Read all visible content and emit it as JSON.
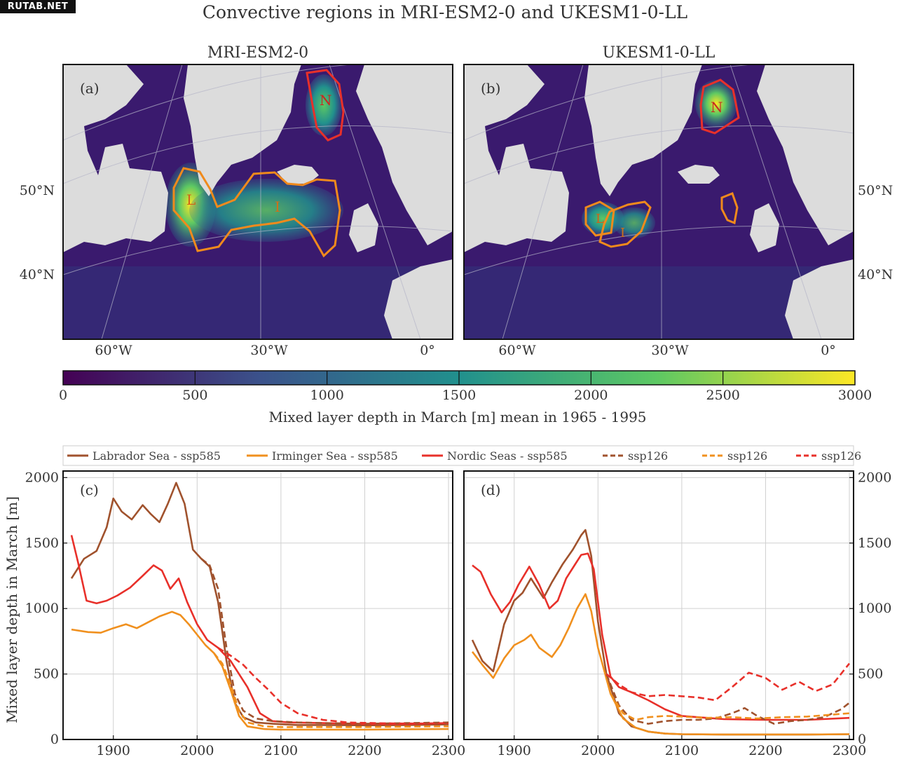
{
  "watermark": "RUTAB.NET",
  "figure_title": "Convective regions in MRI-ESM2-0 and UKESM1-0-LL",
  "maps": [
    {
      "title": "MRI-ESM2-0",
      "panel": "(a)",
      "region_labels": [
        "L",
        "I",
        "N"
      ]
    },
    {
      "title": "UKESM1-0-LL",
      "panel": "(b)",
      "region_labels": [
        "L",
        "I",
        "N"
      ]
    }
  ],
  "map_axis": {
    "lat_labels": [
      "50°N",
      "40°N"
    ],
    "lon_labels": [
      "60°W",
      "30°W",
      "0°"
    ]
  },
  "colorbar": {
    "ticks": [
      "0",
      "500",
      "1000",
      "1500",
      "2000",
      "2500",
      "3000"
    ],
    "label": "Mixed layer depth in March [m] mean in 1965 - 1995",
    "colormap": [
      "#440154",
      "#3b528b",
      "#21908d",
      "#5dc863",
      "#fde725"
    ]
  },
  "legend": [
    {
      "label": "Labrador Sea - ssp585",
      "color": "#a0522d",
      "dash": "solid"
    },
    {
      "label": "Irminger Sea - ssp585",
      "color": "#f0901e",
      "dash": "solid"
    },
    {
      "label": "Nordic Seas - ssp585",
      "color": "#e8302a",
      "dash": "solid"
    },
    {
      "label": "ssp126",
      "color": "#a0522d",
      "dash": "dashed"
    },
    {
      "label": "ssp126",
      "color": "#f0901e",
      "dash": "dashed"
    },
    {
      "label": "ssp126",
      "color": "#e8302a",
      "dash": "dashed"
    }
  ],
  "chart_data": [
    {
      "type": "line",
      "panel": "(c)",
      "ylabel": "Mixed layer depth in March [m]",
      "xlim": [
        1840,
        2305
      ],
      "ylim": [
        0,
        2050
      ],
      "xticks": [
        1900,
        2000,
        2100,
        2200,
        2300
      ],
      "yticks": [
        0,
        500,
        1000,
        1500,
        2000
      ],
      "grid": true,
      "series": [
        {
          "name": "Labrador Sea - ssp585",
          "color": "#a0522d",
          "dash": "solid",
          "x": [
            1850,
            1865,
            1880,
            1892,
            1900,
            1910,
            1922,
            1935,
            1945,
            1955,
            1965,
            1975,
            1985,
            1995,
            2005,
            2015,
            2025,
            2035,
            2045,
            2055,
            2070,
            2090,
            2120,
            2150,
            2200,
            2250,
            2300
          ],
          "y": [
            1230,
            1380,
            1440,
            1620,
            1840,
            1740,
            1680,
            1790,
            1720,
            1660,
            1800,
            1960,
            1800,
            1450,
            1380,
            1320,
            1050,
            600,
            280,
            170,
            130,
            120,
            110,
            110,
            108,
            110,
            115
          ]
        },
        {
          "name": "Irminger Sea - ssp585",
          "color": "#f0901e",
          "dash": "solid",
          "x": [
            1850,
            1870,
            1885,
            1900,
            1915,
            1928,
            1940,
            1955,
            1970,
            1980,
            1990,
            2000,
            2010,
            2020,
            2030,
            2040,
            2050,
            2060,
            2080,
            2100,
            2150,
            2200,
            2250,
            2300
          ],
          "y": [
            840,
            820,
            815,
            850,
            880,
            850,
            890,
            940,
            975,
            950,
            880,
            800,
            720,
            660,
            560,
            380,
            180,
            100,
            80,
            75,
            75,
            75,
            78,
            80
          ]
        },
        {
          "name": "Nordic Seas - ssp585",
          "color": "#e8302a",
          "dash": "solid",
          "x": [
            1850,
            1858,
            1868,
            1880,
            1892,
            1905,
            1920,
            1935,
            1948,
            1958,
            1968,
            1978,
            1988,
            2000,
            2012,
            2025,
            2040,
            2060,
            2075,
            2090,
            2110,
            2150,
            2200,
            2250,
            2300
          ],
          "y": [
            1560,
            1350,
            1060,
            1040,
            1060,
            1100,
            1160,
            1250,
            1330,
            1290,
            1150,
            1230,
            1050,
            880,
            760,
            700,
            600,
            400,
            200,
            140,
            130,
            125,
            118,
            118,
            125
          ]
        },
        {
          "name": "ssp126",
          "color": "#a0522d",
          "dash": "dashed",
          "x": [
            2005,
            2015,
            2025,
            2035,
            2045,
            2055,
            2070,
            2090,
            2120,
            2150,
            2200,
            2250,
            2300
          ],
          "y": [
            1380,
            1330,
            1150,
            700,
            350,
            220,
            160,
            140,
            130,
            125,
            120,
            125,
            130
          ]
        },
        {
          "name": "ssp126",
          "color": "#f0901e",
          "dash": "dashed",
          "x": [
            2020,
            2030,
            2040,
            2050,
            2060,
            2080,
            2100,
            2150,
            2200,
            2250,
            2300
          ],
          "y": [
            660,
            580,
            420,
            220,
            130,
            100,
            95,
            95,
            95,
            98,
            100
          ]
        },
        {
          "name": "ssp126",
          "color": "#e8302a",
          "dash": "dashed",
          "x": [
            2025,
            2040,
            2055,
            2070,
            2085,
            2100,
            2120,
            2150,
            2180,
            2210,
            2240,
            2270,
            2300
          ],
          "y": [
            700,
            640,
            570,
            470,
            380,
            280,
            200,
            150,
            130,
            125,
            122,
            122,
            125
          ]
        }
      ]
    },
    {
      "type": "line",
      "panel": "(d)",
      "xlim": [
        1840,
        2305
      ],
      "ylim": [
        0,
        2050
      ],
      "xticks": [
        1900,
        2000,
        2100,
        2200,
        2300
      ],
      "yticks": [
        0,
        500,
        1000,
        1500,
        2000
      ],
      "grid": true,
      "series": [
        {
          "name": "Labrador Sea - ssp585",
          "color": "#a0522d",
          "dash": "solid",
          "x": [
            1850,
            1862,
            1875,
            1888,
            1900,
            1910,
            1920,
            1935,
            1945,
            1958,
            1970,
            1980,
            1985,
            1992,
            2000,
            2010,
            2025,
            2040,
            2060,
            2080,
            2100,
            2150,
            2200,
            2250,
            2300
          ],
          "y": [
            760,
            600,
            520,
            880,
            1060,
            1120,
            1230,
            1080,
            1200,
            1340,
            1450,
            1560,
            1600,
            1400,
            900,
            500,
            200,
            100,
            60,
            45,
            40,
            38,
            38,
            38,
            40
          ]
        },
        {
          "name": "Irminger Sea - ssp585",
          "color": "#f0901e",
          "dash": "solid",
          "x": [
            1850,
            1862,
            1875,
            1888,
            1900,
            1912,
            1920,
            1930,
            1945,
            1955,
            1965,
            1975,
            1985,
            1992,
            2000,
            2015,
            2030,
            2045,
            2060,
            2080,
            2100,
            2150,
            2200,
            2250,
            2300
          ],
          "y": [
            670,
            570,
            470,
            620,
            720,
            760,
            800,
            700,
            630,
            720,
            850,
            1000,
            1110,
            980,
            700,
            350,
            160,
            90,
            60,
            45,
            40,
            38,
            38,
            38,
            40
          ]
        },
        {
          "name": "Nordic Seas - ssp585",
          "color": "#e8302a",
          "dash": "solid",
          "x": [
            1850,
            1860,
            1872,
            1885,
            1895,
            1905,
            1918,
            1930,
            1942,
            1952,
            1962,
            1972,
            1980,
            1988,
            1995,
            2005,
            2015,
            2025,
            2040,
            2060,
            2080,
            2100,
            2150,
            2200,
            2250,
            2300
          ],
          "y": [
            1330,
            1280,
            1110,
            970,
            1050,
            1180,
            1320,
            1180,
            1000,
            1060,
            1230,
            1330,
            1410,
            1420,
            1300,
            800,
            480,
            400,
            360,
            300,
            230,
            180,
            155,
            150,
            150,
            165
          ]
        },
        {
          "name": "ssp126",
          "color": "#a0522d",
          "dash": "dashed",
          "x": [
            2010,
            2025,
            2040,
            2060,
            2080,
            2100,
            2120,
            2140,
            2160,
            2175,
            2190,
            2210,
            2230,
            2250,
            2270,
            2290,
            2300
          ],
          "y": [
            500,
            260,
            150,
            120,
            140,
            150,
            150,
            160,
            200,
            240,
            180,
            120,
            140,
            150,
            170,
            230,
            280
          ]
        },
        {
          "name": "ssp126",
          "color": "#f0901e",
          "dash": "dashed",
          "x": [
            2015,
            2030,
            2045,
            2060,
            2080,
            2100,
            2130,
            2160,
            2190,
            2220,
            2250,
            2280,
            2300
          ],
          "y": [
            350,
            200,
            150,
            170,
            180,
            175,
            165,
            170,
            160,
            170,
            175,
            190,
            200
          ]
        },
        {
          "name": "ssp126",
          "color": "#e8302a",
          "dash": "dashed",
          "x": [
            2010,
            2025,
            2040,
            2060,
            2080,
            2100,
            2120,
            2140,
            2160,
            2180,
            2200,
            2220,
            2240,
            2260,
            2280,
            2300
          ],
          "y": [
            500,
            420,
            360,
            330,
            340,
            330,
            320,
            300,
            400,
            510,
            470,
            380,
            440,
            370,
            420,
            580
          ]
        }
      ]
    }
  ]
}
